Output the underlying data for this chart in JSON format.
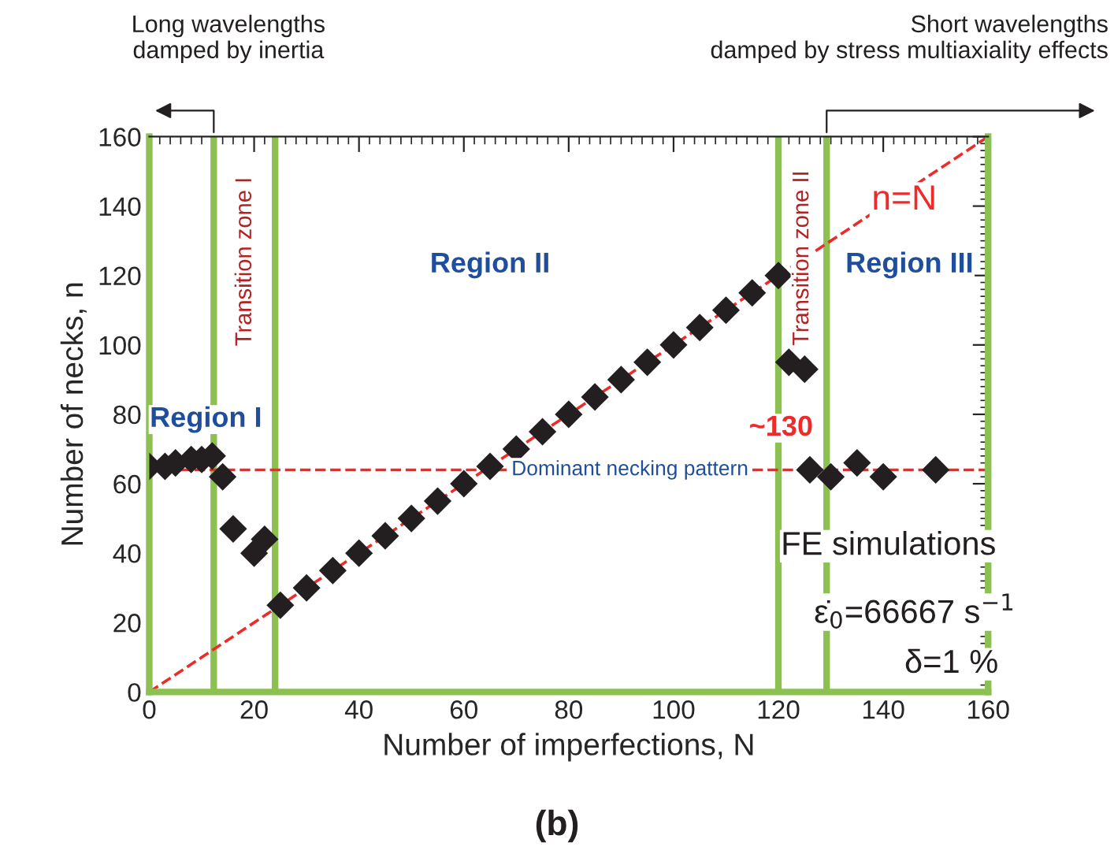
{
  "chart_data": {
    "type": "scatter",
    "xlabel": "Number of imperfections, N",
    "ylabel": "Number of necks, n",
    "xlim": [
      0,
      160
    ],
    "ylim": [
      0,
      160
    ],
    "xticks": [
      0,
      20,
      40,
      60,
      80,
      100,
      120,
      140,
      160
    ],
    "yticks": [
      0,
      20,
      40,
      60,
      80,
      100,
      120,
      140,
      160
    ],
    "grid": false,
    "legend": false,
    "series": [
      {
        "type": "line",
        "name": "n=N",
        "color": "#ee2b2b",
        "line_style": "dashed",
        "marker": "none",
        "x": [
          0,
          160
        ],
        "values": [
          0,
          160
        ]
      },
      {
        "color": "#231f20",
        "marker": "diamond",
        "x": [
          0,
          3,
          5,
          8,
          10,
          12,
          14,
          16,
          20,
          22,
          25,
          30,
          35,
          40,
          45,
          50,
          55,
          60,
          65,
          70,
          75,
          80,
          85,
          90,
          95,
          100,
          105,
          110,
          115,
          120,
          122,
          125,
          126,
          130,
          135,
          140,
          150
        ],
        "values": [
          65,
          65,
          66,
          67,
          67,
          68,
          62,
          47,
          40,
          44,
          25,
          30,
          35,
          40,
          45,
          50,
          55,
          60,
          65,
          70,
          75,
          80,
          85,
          90,
          95,
          100,
          105,
          110,
          115,
          120,
          95,
          93,
          64,
          62,
          66,
          62,
          64
        ]
      }
    ],
    "ref_lines": [
      {
        "axis": "y",
        "value": 64,
        "label": "Dominant necking pattern",
        "color": "#ee2b2b",
        "line_style": "dashed"
      },
      {
        "axis": "x",
        "value": 12.3,
        "color": "#8cc152",
        "line_style": "solid"
      },
      {
        "axis": "x",
        "value": 24,
        "color": "#8cc152",
        "line_style": "solid"
      },
      {
        "axis": "x",
        "value": 120,
        "color": "#8cc152",
        "line_style": "solid"
      },
      {
        "axis": "x",
        "value": 129.2,
        "color": "#8cc152",
        "line_style": "solid"
      }
    ],
    "annotations": [
      "Long wavelengths\ndamped by inertia",
      "Short wavelengths\ndamped by stress multiaxiality effects",
      "Region I",
      "Region II",
      "Region III",
      "Transition zone I",
      "Transition zone II",
      "~130",
      "FE simulations",
      "ε̇$_{0}$=66667 s$^{−1}$",
      "δ=1 %",
      "(b)"
    ]
  }
}
